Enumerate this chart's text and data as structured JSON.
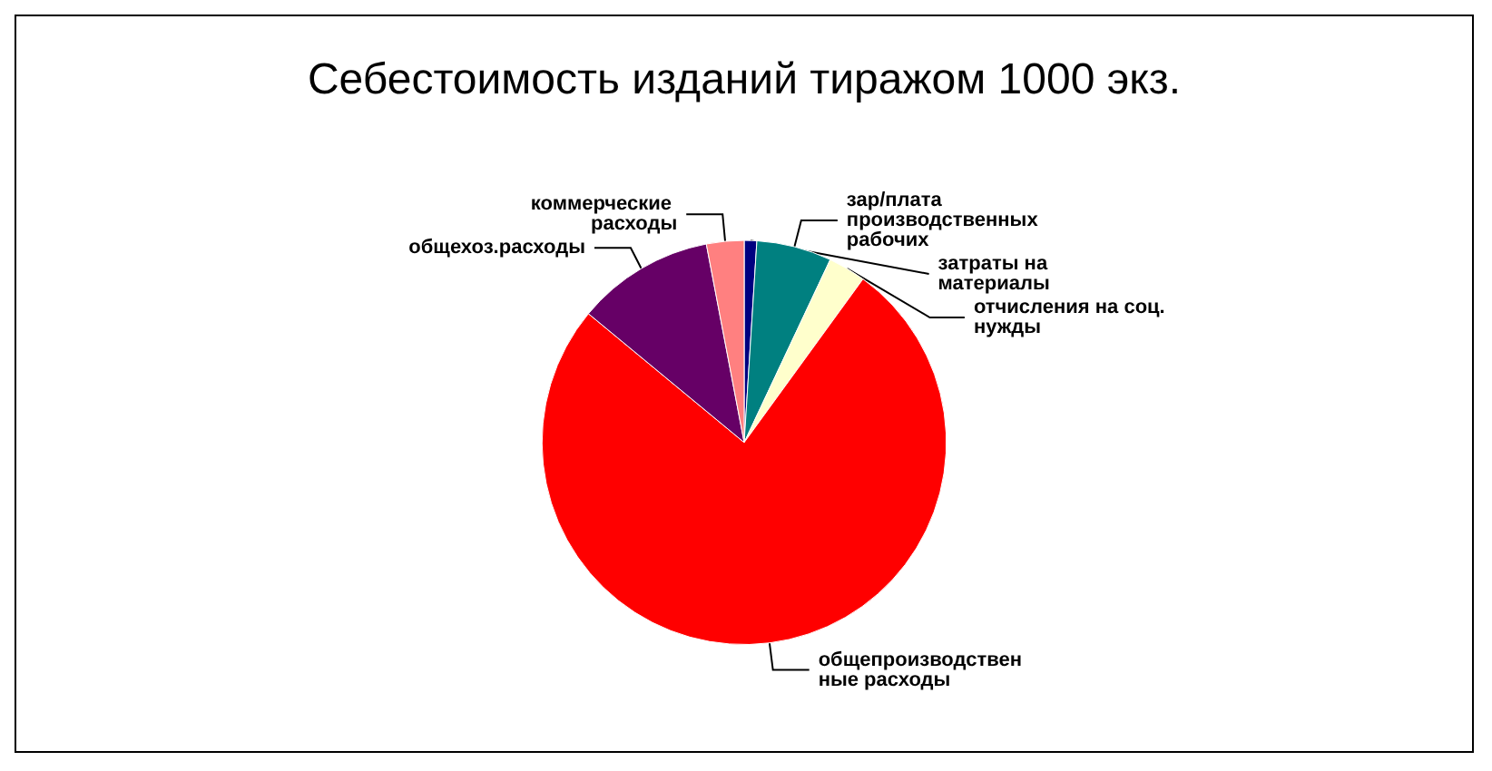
{
  "chart_data": {
    "type": "pie",
    "title": "Себестоимость изданий тиражом 1000 экз.",
    "categories": [
      "затраты на материалы",
      "зар/плата производственных рабочих",
      "отчисления на соц. нужды",
      "общепроизводственные расходы",
      "общехоз.расходы",
      "коммерческие расходы"
    ],
    "values": [
      1,
      6,
      3,
      76,
      11,
      3
    ],
    "colors": [
      "#000080",
      "#008080",
      "#ffffcc",
      "#ff0000",
      "#660066",
      "#ff8080"
    ]
  }
}
